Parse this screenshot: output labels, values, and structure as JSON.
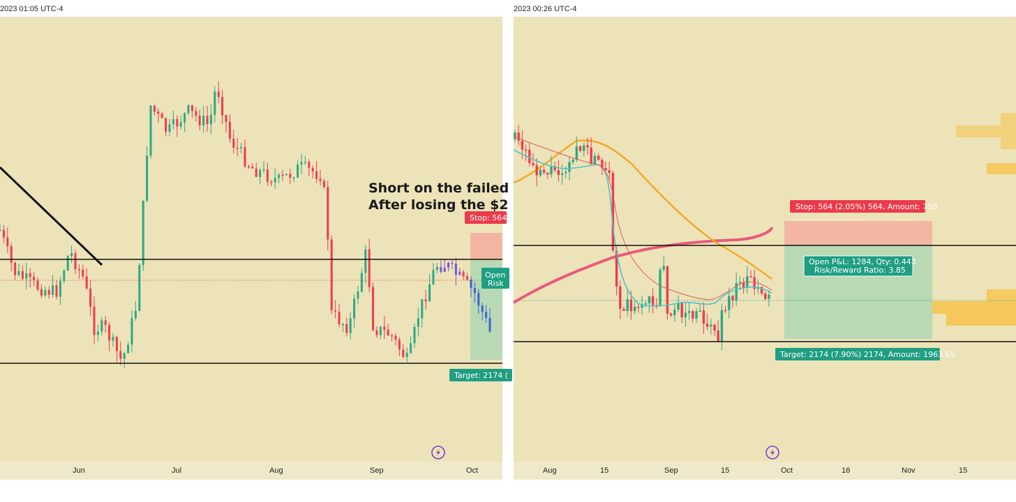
{
  "colors": {
    "background": "#ede3b8",
    "axis_strip": "#efe9c9",
    "up": "#2aa987",
    "down": "#ef3b4e",
    "stop_zone": "#f2b6a3",
    "target_zone": "#b8d9b3",
    "ma_orange": "#f5a623",
    "ma_pink": "#e85a7b",
    "ma_teal": "#4fc3c9",
    "ma_red_thin": "#e25c5c",
    "stop_tag": "#ea3b4b",
    "target_tag": "#1f9e82",
    "volume_profile": "#f6c34a",
    "purple_candle": "#7b55d6",
    "blue_candle": "#3f62d9",
    "line": "#111111"
  },
  "chart_data": [
    {
      "type": "candlestick",
      "timestamp_label": "2023 01:05 UTC-4",
      "x_tick_labels": [
        "Jun",
        "Jul",
        "Aug",
        "Sep",
        "Oct"
      ],
      "annotation_lines": [
        "Short on the failed",
        "After losing the $2"
      ],
      "horizontal_levels": [
        "resistance",
        "support"
      ],
      "position": {
        "side": "short",
        "stop_label": "Stop: 564",
        "open_label_line1": "Open",
        "open_label_line2": "Risk",
        "target_label": "Target: 2174 ("
      },
      "icons": [
        "lightning-icon"
      ],
      "seed": 7
    },
    {
      "type": "candlestick",
      "timestamp_label": "2023 00:26 UTC-4",
      "x_tick_labels": [
        "Aug",
        "15",
        "Sep",
        "15",
        "Oct",
        "16",
        "Nov",
        "15"
      ],
      "horizontal_levels": [
        "resistance",
        "support"
      ],
      "moving_averages": [
        "orange",
        "pink",
        "teal",
        "thin-red"
      ],
      "position": {
        "side": "short",
        "stop_label": "Stop: 564 (2.05%) 564, Amount: 750",
        "open_label_line1": "Open P&L: 1284, Qty: 0.443",
        "open_label_line2": "Risk/Reward Ratio: 3.85",
        "target_label": "Target: 2174 (7.90%) 2174, Amount: 1963.65",
        "risk_reward": 3.85,
        "qty": 0.443,
        "open_pnl": 1284
      },
      "icons": [
        "lightning-icon"
      ],
      "seed": 21
    }
  ]
}
